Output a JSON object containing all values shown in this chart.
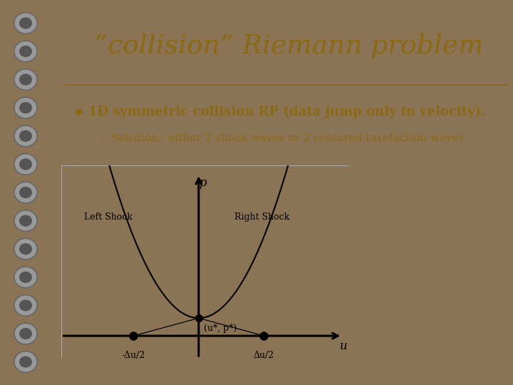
{
  "title": "“collision” Riemann problem",
  "bullet1": "1D symmetric collision RP (data jump only in velocity).",
  "bullet2": "Solution:  either 2 shock waves or 2 centered rarefaction waves",
  "bg_outer": "#8B7355",
  "bg_page": "#F5F5DC",
  "bg_plot": "#FFFFFF",
  "title_color": "#8B6914",
  "text_color": "#8B6914",
  "plot_line_color": "#000000",
  "xlabel": "u",
  "ylabel": "p",
  "left_shock_label": "Left Shock",
  "right_shock_label": "Right Shock",
  "star_label": "(u*, p*)",
  "left_tick": "-Δu/2",
  "right_tick": "Δu/2",
  "du_half": 1.0,
  "p_star": 0.12
}
